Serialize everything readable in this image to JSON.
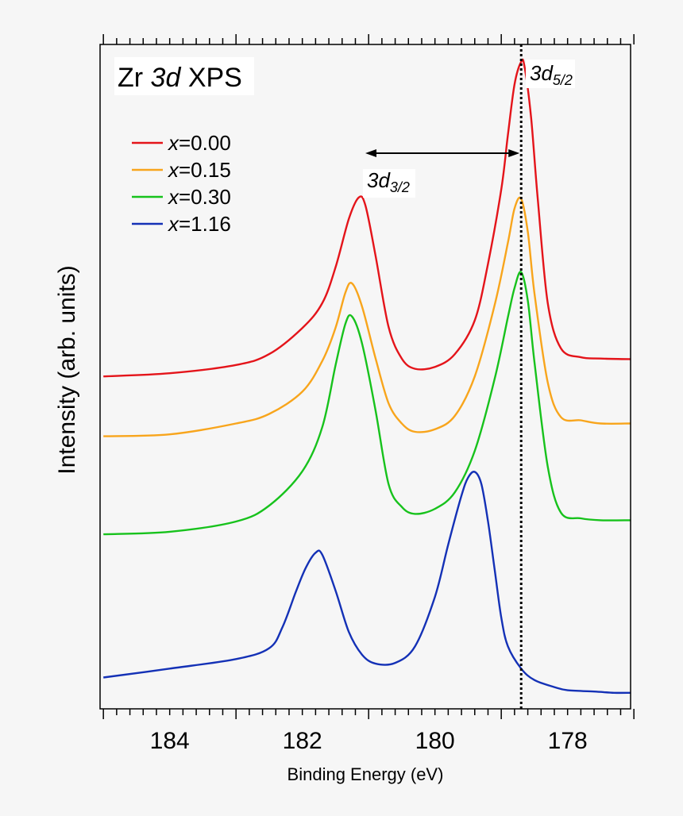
{
  "chart_data": {
    "type": "line",
    "title_parts": {
      "pre": "Zr ",
      "em": "3d",
      "post": " XPS"
    },
    "xlabel": "Binding Energy (eV)",
    "ylabel": "Intensity (arb. units)",
    "x_reversed": true,
    "xlim": [
      185.05,
      177.05
    ],
    "xticks": [
      184,
      182,
      180,
      178
    ],
    "tick_labels": [
      "184",
      "182",
      "180",
      "178"
    ],
    "ylim": [
      0,
      1
    ],
    "grid": false,
    "legend_position": "upper-left",
    "series": [
      {
        "name_var": "x",
        "name_val": "=0.00",
        "color": "#e4141a",
        "x": [
          185.0,
          184.0,
          183.0,
          182.5,
          182.0,
          181.7,
          181.5,
          181.3,
          181.15,
          181.05,
          180.9,
          180.7,
          180.5,
          180.3,
          180.0,
          179.7,
          179.4,
          179.2,
          179.0,
          178.9,
          178.8,
          178.7,
          178.65,
          178.55,
          178.45,
          178.3,
          178.1,
          177.8,
          177.5,
          177.05
        ],
        "y": [
          0.506,
          0.511,
          0.524,
          0.541,
          0.582,
          0.621,
          0.677,
          0.753,
          0.787,
          0.775,
          0.698,
          0.584,
          0.534,
          0.518,
          0.521,
          0.541,
          0.594,
          0.683,
          0.8,
          0.885,
          0.965,
          1.0,
          0.993,
          0.912,
          0.785,
          0.622,
          0.55,
          0.536,
          0.534,
          0.533
        ]
      },
      {
        "name_var": "x",
        "name_val": "=0.15",
        "color": "#f8a51c",
        "x": [
          185.0,
          184.0,
          183.0,
          182.5,
          182.0,
          181.7,
          181.5,
          181.35,
          181.25,
          181.1,
          180.9,
          180.7,
          180.5,
          180.3,
          180.0,
          179.7,
          179.4,
          179.1,
          178.9,
          178.8,
          178.7,
          178.6,
          178.5,
          178.3,
          178.1,
          177.8,
          177.5,
          177.05
        ],
        "y": [
          0.412,
          0.415,
          0.432,
          0.447,
          0.482,
          0.53,
          0.582,
          0.638,
          0.652,
          0.616,
          0.536,
          0.464,
          0.432,
          0.419,
          0.423,
          0.444,
          0.506,
          0.618,
          0.716,
          0.77,
          0.785,
          0.733,
          0.637,
          0.497,
          0.442,
          0.437,
          0.432,
          0.432
        ]
      },
      {
        "name_var": "x",
        "name_val": "=0.30",
        "color": "#17c21c",
        "x": [
          185.0,
          184.0,
          183.0,
          182.5,
          182.0,
          181.7,
          181.5,
          181.35,
          181.25,
          181.1,
          180.9,
          180.7,
          180.5,
          180.3,
          180.0,
          179.7,
          179.4,
          179.1,
          178.9,
          178.8,
          178.7,
          178.6,
          178.5,
          178.3,
          178.1,
          177.8,
          177.5,
          177.05
        ],
        "y": [
          0.258,
          0.262,
          0.278,
          0.303,
          0.357,
          0.426,
          0.523,
          0.589,
          0.6,
          0.558,
          0.455,
          0.337,
          0.301,
          0.29,
          0.298,
          0.324,
          0.389,
          0.502,
          0.599,
          0.645,
          0.67,
          0.625,
          0.529,
          0.365,
          0.292,
          0.283,
          0.28,
          0.28
        ]
      },
      {
        "name_var": "x",
        "name_val": "=1.16",
        "color": "#1431b6",
        "x": [
          185.0,
          184.0,
          183.0,
          182.5,
          182.3,
          182.1,
          181.95,
          181.8,
          181.7,
          181.5,
          181.3,
          181.1,
          180.9,
          180.6,
          180.3,
          180.0,
          179.8,
          179.6,
          179.5,
          179.4,
          179.3,
          179.2,
          179.1,
          179.0,
          178.9,
          178.7,
          178.5,
          178.2,
          178.0,
          177.6,
          177.3,
          177.05
        ],
        "y": [
          0.033,
          0.047,
          0.062,
          0.079,
          0.112,
          0.167,
          0.205,
          0.229,
          0.226,
          0.17,
          0.105,
          0.069,
          0.055,
          0.056,
          0.082,
          0.16,
          0.242,
          0.319,
          0.347,
          0.356,
          0.337,
          0.278,
          0.203,
          0.127,
          0.082,
          0.047,
          0.029,
          0.018,
          0.013,
          0.011,
          0.009,
          0.009
        ]
      }
    ],
    "reference_line": {
      "x": 178.7,
      "style": "dotted"
    },
    "annotations": {
      "d52_main": "3d",
      "d52_sub": "5/2",
      "d32_main": "3d",
      "d32_sub": "3/2",
      "arrow_from": 181.05,
      "arrow_to": 178.7
    }
  }
}
